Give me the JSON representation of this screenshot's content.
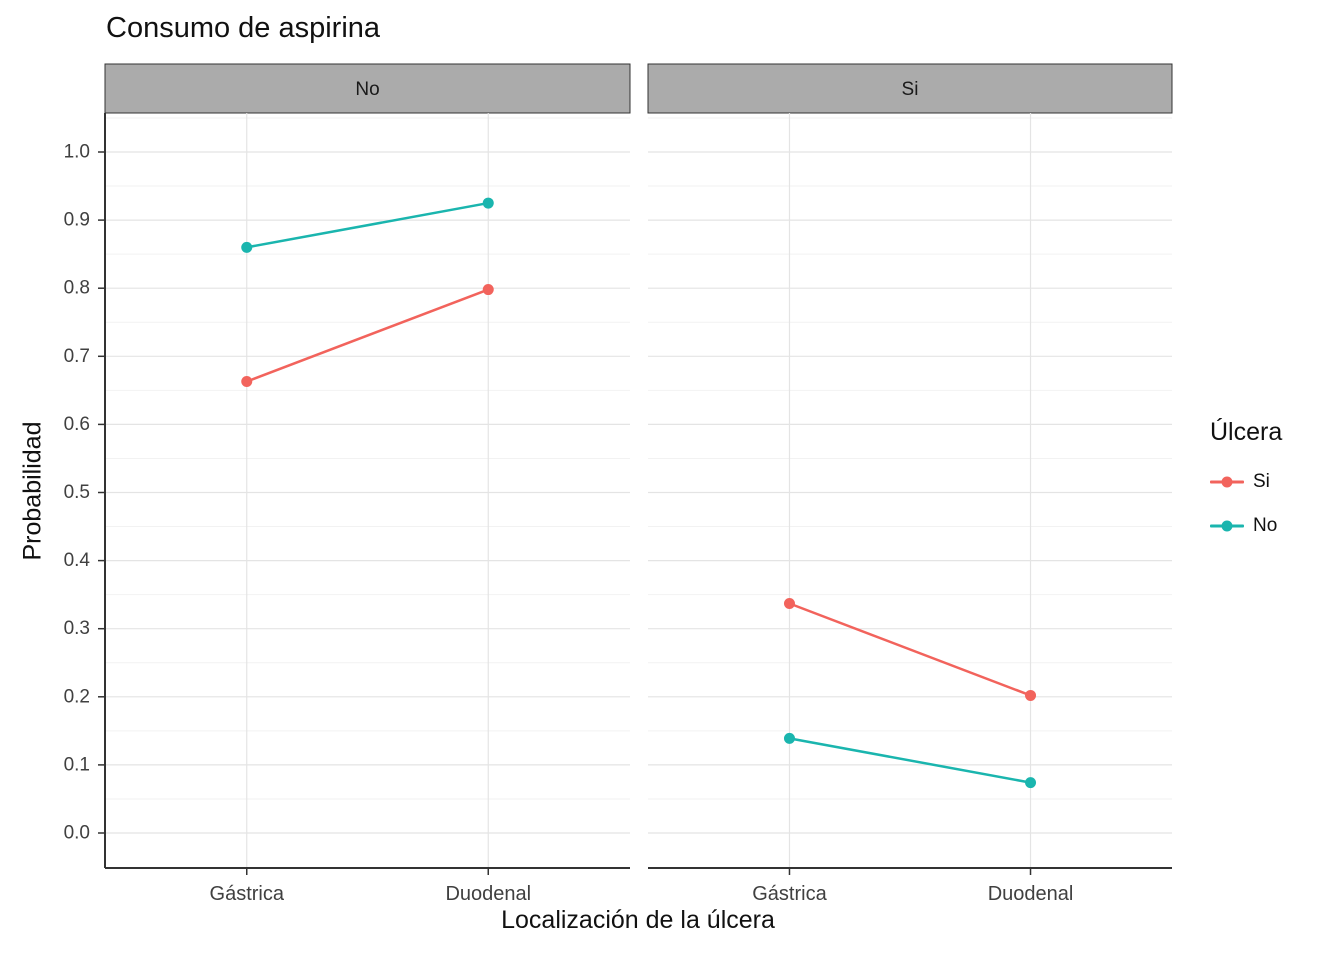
{
  "chart_data": {
    "type": "line",
    "title": "Consumo de aspirina",
    "xlabel": "Localización de la úlcera",
    "ylabel": "Probabilidad",
    "categories": [
      "Gástrica",
      "Duodenal"
    ],
    "yticks": [
      0.0,
      0.1,
      0.2,
      0.3,
      0.4,
      0.5,
      0.6,
      0.7,
      0.8,
      0.9,
      1.0
    ],
    "ylim": [
      0.0,
      1.0
    ],
    "grid": true,
    "legend_position": "right",
    "facets": [
      {
        "label": "No",
        "series": [
          {
            "name": "Si",
            "color": "#F2635C",
            "values": [
              0.663,
              0.798
            ]
          },
          {
            "name": "No",
            "color": "#1AB5AE",
            "values": [
              0.86,
              0.925
            ]
          }
        ]
      },
      {
        "label": "Si",
        "series": [
          {
            "name": "Si",
            "color": "#F2635C",
            "values": [
              0.337,
              0.202
            ]
          },
          {
            "name": "No",
            "color": "#1AB5AE",
            "values": [
              0.139,
              0.074
            ]
          }
        ]
      }
    ],
    "legend": {
      "title": "Úlcera",
      "entries": [
        {
          "label": "Si",
          "color": "#F2635C"
        },
        {
          "label": "No",
          "color": "#1AB5AE"
        }
      ]
    },
    "style": {
      "strip_fill": "#ABABAB",
      "strip_border": "#333333",
      "grid_major": "#E4E4E4",
      "grid_minor": "#F2F2F2",
      "axis_color": "#333333",
      "tick_label_color": "#404040",
      "background": "#FFFFFF"
    }
  }
}
